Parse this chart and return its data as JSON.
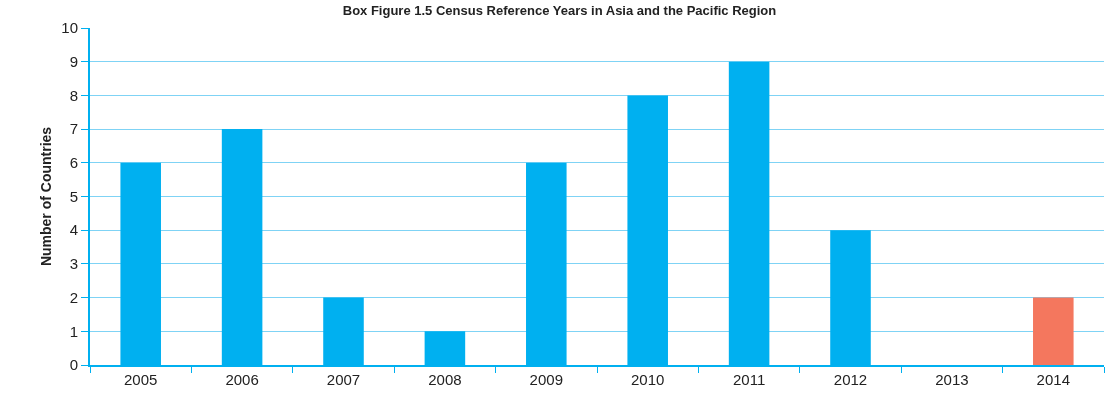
{
  "chart_data": {
    "type": "bar",
    "title": "Box Figure 1.5 Census Reference Years in Asia and the Pacific Region",
    "ylabel": "Number of Countries",
    "categories": [
      "2005",
      "2006",
      "2007",
      "2008",
      "2009",
      "2010",
      "2011",
      "2012",
      "2013",
      "2014"
    ],
    "values": [
      6,
      7,
      2,
      1,
      6,
      8,
      9,
      4,
      0,
      2
    ],
    "colors": [
      "#00b0f0",
      "#00b0f0",
      "#00b0f0",
      "#00b0f0",
      "#00b0f0",
      "#00b0f0",
      "#00b0f0",
      "#00b0f0",
      "#00b0f0",
      "#f4775e"
    ],
    "ylim": [
      0,
      10
    ],
    "yticks": [
      0,
      1,
      2,
      3,
      4,
      5,
      6,
      7,
      8,
      9,
      10
    ],
    "grid": "y"
  }
}
